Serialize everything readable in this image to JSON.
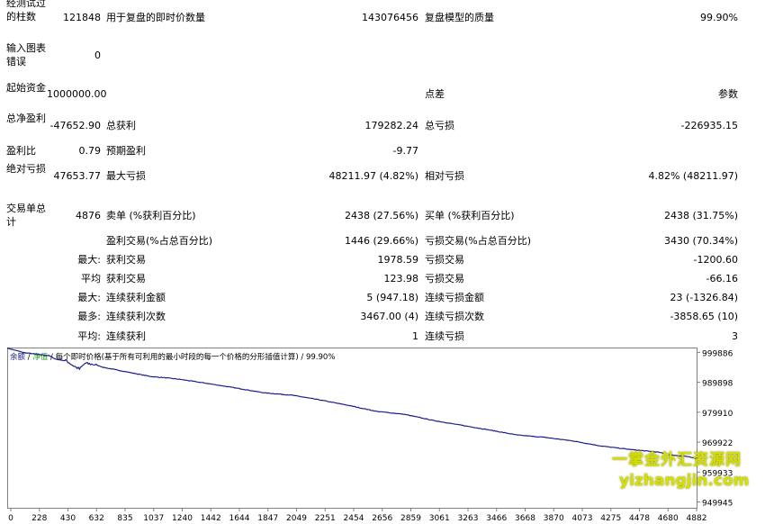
{
  "report": {
    "r1": {
      "l1": "经测试过的柱数",
      "v1": "121848",
      "l2": "用于复盘的即时价数量",
      "v2": "143076456",
      "l3": "复盘模型的质量",
      "v3": "99.90%"
    },
    "r2": {
      "l1": "输入图表错误",
      "v1": "0"
    },
    "r3": {
      "l1": "起始资金",
      "v1": "1000000.00",
      "l2": "点差",
      "v3": "参数"
    },
    "r4": {
      "l1": "总净盈利",
      "v1": "-47652.90",
      "l2": "总获利",
      "v2": "179282.24",
      "l3": "总亏损",
      "v3": "-226935.15"
    },
    "r5": {
      "l1": "盈利比",
      "v1": "0.79",
      "l2": "预期盈利",
      "v2": "-9.77"
    },
    "r6": {
      "l1": "绝对亏损",
      "v1": "47653.77",
      "l2": "最大亏损",
      "v2": "48211.97 (4.82%)",
      "l3": "相对亏损",
      "v3": "4.82% (48211.97)"
    },
    "r7": {
      "l1": "交易单总计",
      "v1": "4876",
      "l2": "卖单 (%获利百分比)",
      "v2": "2438 (27.56%)",
      "l3": "买单 (%获利百分比)",
      "v3": "2438 (31.75%)"
    },
    "r8": {
      "l2": "盈利交易(%占总百分比)",
      "v2": "1446 (29.66%)",
      "l3": "亏损交易(%占总百分比)",
      "v3": "3430 (70.34%)"
    },
    "r9": {
      "p": "最大:",
      "l2": "获利交易",
      "v2": "1978.59",
      "l3": "亏损交易",
      "v3": "-1200.60"
    },
    "r10": {
      "p": "平均",
      "l2": "获利交易",
      "v2": "123.98",
      "l3": "亏损交易",
      "v3": "-66.16"
    },
    "r11": {
      "p": "最大:",
      "l2": "连续获利金额",
      "v2": "5 (947.18)",
      "l3": "连续亏损金额",
      "v3": "23 (-1326.84)"
    },
    "r12": {
      "p": "最多:",
      "l2": "连续获利次数",
      "v2": "3467.00 (4)",
      "l3": "连续亏损次数",
      "v3": "-3858.65 (10)"
    },
    "r13": {
      "p": "平均:",
      "l2": "连续获利",
      "v2": "1",
      "l3": "连续亏损",
      "v3": "3"
    }
  },
  "chart": {
    "legend_balance": "余额",
    "legend_sep1": " / ",
    "legend_equity": "净值",
    "legend_rest": " / 每个即时价格(基于所有可利用的最小时段的每一个价格的分形插值计算) / 99.90%",
    "balance_color": "#1c1c8c",
    "equity_color": "#20a020"
  },
  "chart_data": {
    "type": "line",
    "series": [],
    "x_ticks": [
      "0",
      "228",
      "430",
      "632",
      "835",
      "1037",
      "1240",
      "1442",
      "1644",
      "1847",
      "2049",
      "2251",
      "2454",
      "2656",
      "2859",
      "3061",
      "3263",
      "3466",
      "3668",
      "3870",
      "4073",
      "4275",
      "4478",
      "4680",
      "4882"
    ],
    "y_ticks": [
      "999886",
      "989898",
      "979910",
      "969922",
      "959933",
      "949945"
    ],
    "ylim": [
      948000,
      1001500
    ],
    "xlim": [
      0,
      4960
    ],
    "keypoints": [
      [
        0,
        1001300
      ],
      [
        120,
        999800
      ],
      [
        228,
        999200
      ],
      [
        300,
        998800
      ],
      [
        350,
        997600
      ],
      [
        430,
        997000
      ],
      [
        470,
        995600
      ],
      [
        520,
        994300
      ],
      [
        560,
        996200
      ],
      [
        632,
        995800
      ],
      [
        700,
        994800
      ],
      [
        835,
        993600
      ],
      [
        900,
        993000
      ],
      [
        1037,
        991800
      ],
      [
        1140,
        991400
      ],
      [
        1240,
        990900
      ],
      [
        1442,
        989500
      ],
      [
        1644,
        988000
      ],
      [
        1847,
        986400
      ],
      [
        2049,
        985600
      ],
      [
        2251,
        984000
      ],
      [
        2454,
        982200
      ],
      [
        2656,
        980200
      ],
      [
        2859,
        979200
      ],
      [
        3061,
        977200
      ],
      [
        3263,
        975600
      ],
      [
        3466,
        974000
      ],
      [
        3668,
        972300
      ],
      [
        3870,
        971500
      ],
      [
        4073,
        970300
      ],
      [
        4275,
        968600
      ],
      [
        4478,
        967500
      ],
      [
        4680,
        966600
      ],
      [
        4780,
        965600
      ],
      [
        4882,
        965200
      ],
      [
        4960,
        964400
      ]
    ]
  },
  "watermark": {
    "line1": "一掌金外汇资源网",
    "line2": "yizhangjin.com"
  }
}
